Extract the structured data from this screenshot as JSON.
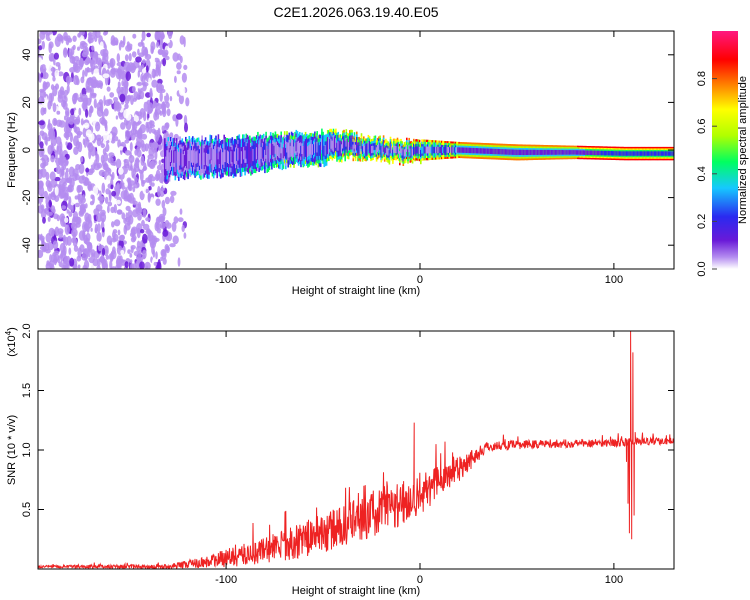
{
  "title": "C2E1.2026.063.19.40.E05",
  "chart_data": [
    {
      "type": "heatmap",
      "name": "spectrogram",
      "xlabel": "Height of straight line (km)",
      "ylabel": "Frequency (Hz)",
      "xlim": [
        -197,
        131
      ],
      "ylim": [
        -50,
        50
      ],
      "x_ticks": [
        {
          "value": -100,
          "label": "-100"
        },
        {
          "value": 0,
          "label": "0"
        },
        {
          "value": 100,
          "label": "100"
        }
      ],
      "y_ticks": [
        {
          "value": 40,
          "label": "40"
        },
        {
          "value": 20,
          "label": "20"
        },
        {
          "value": 0,
          "label": "0"
        },
        {
          "value": -20,
          "label": "-20"
        },
        {
          "value": -40,
          "label": "-40"
        }
      ],
      "colorbar": {
        "label": "Normalized spectral amplitude",
        "range": [
          0,
          1
        ],
        "ticks": [
          {
            "value": 0.0,
            "label": "0.0"
          },
          {
            "value": 0.2,
            "label": "0.2"
          },
          {
            "value": 0.4,
            "label": "0.4"
          },
          {
            "value": 0.6,
            "label": "0.6"
          },
          {
            "value": 0.8,
            "label": "0.8"
          }
        ],
        "colors": [
          "#ffffff",
          "#b48cf0",
          "#6a1ad8",
          "#2a2af0",
          "#16c8ff",
          "#00ff60",
          "#b0ff00",
          "#ffff00",
          "#ff7a00",
          "#ff0000",
          "#ff1880"
        ]
      },
      "noise_region": {
        "x_from": -197,
        "x_to": -130,
        "fade_to": -120
      },
      "ridge": [
        {
          "x": -132,
          "f": -4,
          "halfwidth": 7,
          "amp": 0.3
        },
        {
          "x": -110,
          "f": -3,
          "halfwidth": 7,
          "amp": 0.34
        },
        {
          "x": -90,
          "f": -2,
          "halfwidth": 7,
          "amp": 0.38
        },
        {
          "x": -70,
          "f": 0,
          "halfwidth": 6,
          "amp": 0.45
        },
        {
          "x": -50,
          "f": 1,
          "halfwidth": 6,
          "amp": 0.55
        },
        {
          "x": -40,
          "f": 2,
          "halfwidth": 5,
          "amp": 0.7
        },
        {
          "x": -25,
          "f": 1,
          "halfwidth": 4,
          "amp": 0.75
        },
        {
          "x": -10,
          "f": -1,
          "halfwidth": 4,
          "amp": 0.8
        },
        {
          "x": 0,
          "f": 0,
          "halfwidth": 4,
          "amp": 0.85
        },
        {
          "x": 20,
          "f": 0,
          "halfwidth": 3,
          "amp": 0.88
        },
        {
          "x": 50,
          "f": -1,
          "halfwidth": 3,
          "amp": 0.9
        },
        {
          "x": 80,
          "f": -1,
          "halfwidth": 2.5,
          "amp": 0.95
        },
        {
          "x": 105,
          "f": -1.5,
          "halfwidth": 2.5,
          "amp": 1.0
        },
        {
          "x": 131,
          "f": -1.5,
          "halfwidth": 2.5,
          "amp": 1.0
        }
      ]
    },
    {
      "type": "line",
      "name": "snr",
      "xlabel": "Height of straight line (km)",
      "ylabel": "SNR (10 * v/v)",
      "scale_label": "(x10",
      "scale_exp": "4",
      "scale_close": ")",
      "color": "#ee2222",
      "xlim": [
        -197,
        131
      ],
      "ylim": [
        0,
        2.0
      ],
      "x_ticks": [
        {
          "value": -100,
          "label": "-100"
        },
        {
          "value": 0,
          "label": "0"
        },
        {
          "value": 100,
          "label": "100"
        }
      ],
      "y_ticks": [
        {
          "value": 0.5,
          "label": "0.5"
        },
        {
          "value": 1.0,
          "label": "1.0"
        },
        {
          "value": 1.5,
          "label": "1.5"
        },
        {
          "value": 2.0,
          "label": "2.0"
        }
      ],
      "baseline": [
        {
          "x": -197,
          "y": 0.02
        },
        {
          "x": -130,
          "y": 0.02
        },
        {
          "x": -110,
          "y": 0.06
        },
        {
          "x": -90,
          "y": 0.12
        },
        {
          "x": -70,
          "y": 0.2
        },
        {
          "x": -50,
          "y": 0.3
        },
        {
          "x": -30,
          "y": 0.42
        },
        {
          "x": -10,
          "y": 0.55
        },
        {
          "x": 0,
          "y": 0.62
        },
        {
          "x": 20,
          "y": 0.85
        },
        {
          "x": 35,
          "y": 1.03
        },
        {
          "x": 60,
          "y": 1.05
        },
        {
          "x": 100,
          "y": 1.06
        },
        {
          "x": 131,
          "y": 1.08
        }
      ],
      "noise": [
        {
          "x": -197,
          "amp": 0.01
        },
        {
          "x": -130,
          "amp": 0.02
        },
        {
          "x": -110,
          "amp": 0.05
        },
        {
          "x": -80,
          "amp": 0.12
        },
        {
          "x": -40,
          "amp": 0.18
        },
        {
          "x": -10,
          "amp": 0.2
        },
        {
          "x": 20,
          "amp": 0.12
        },
        {
          "x": 35,
          "amp": 0.04
        },
        {
          "x": 131,
          "amp": 0.03
        }
      ],
      "spikes": [
        {
          "x": -3,
          "y": 1.23
        },
        {
          "x": -2.2,
          "y": 0.45
        },
        {
          "x": 106.5,
          "y": 0.9
        },
        {
          "x": 107.3,
          "y": 0.55
        },
        {
          "x": 108,
          "y": 0.3
        },
        {
          "x": 108.6,
          "y": 2.0
        },
        {
          "x": 109.2,
          "y": 0.25
        },
        {
          "x": 109.8,
          "y": 1.82
        },
        {
          "x": 110.4,
          "y": 0.45
        },
        {
          "x": 111,
          "y": 1.15
        }
      ]
    }
  ]
}
